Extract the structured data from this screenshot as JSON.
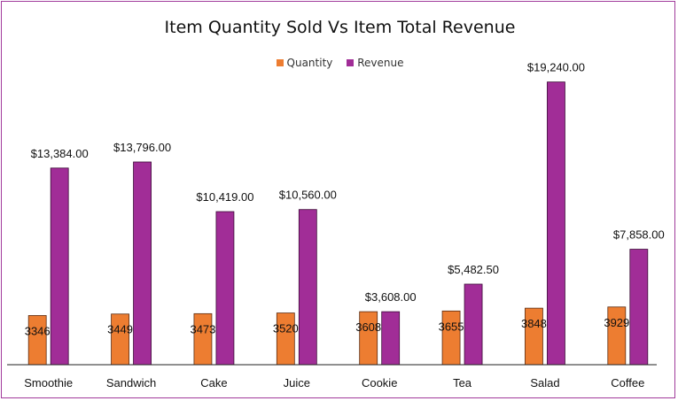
{
  "chart_data": {
    "type": "bar",
    "title": "Item Quantity Sold Vs Item Total Revenue",
    "categories": [
      "Smoothie",
      "Sandwich",
      "Cake",
      "Juice",
      "Cookie",
      "Tea",
      "Salad",
      "Coffee"
    ],
    "series": [
      {
        "name": "Quantity",
        "color": "#ed7d31",
        "values": [
          3346,
          3449,
          3473,
          3520,
          3608,
          3655,
          3848,
          3929
        ],
        "labels": [
          "3346",
          "3449",
          "3473",
          "3520",
          "3608",
          "3655",
          "3848",
          "3929"
        ]
      },
      {
        "name": "Revenue",
        "color": "#a12d97",
        "values": [
          13384.0,
          13796.0,
          10419.0,
          10560.0,
          3608.0,
          5482.5,
          19240.0,
          7858.0
        ],
        "labels": [
          "$13,384.00",
          "$13,796.00",
          "$10,419.00",
          "$10,560.00",
          "$3,608.00",
          "$5,482.50",
          "$19,240.00",
          "$7,858.00"
        ]
      }
    ],
    "xlabel": "",
    "ylabel": "",
    "ylim": [
      0,
      20000
    ],
    "grid": false,
    "legend_position": "top"
  }
}
